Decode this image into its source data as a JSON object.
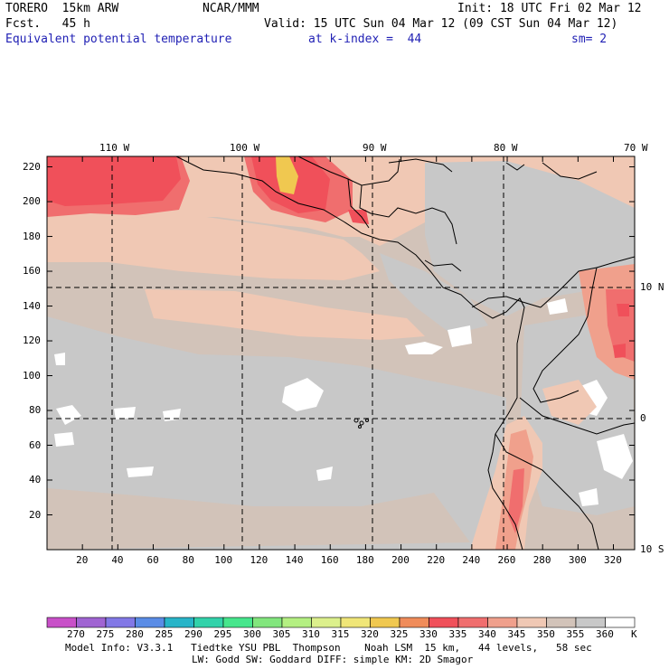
{
  "header": {
    "model": "TORERO  15km ARW",
    "org": "NCAR/MMM",
    "init": "Init: 18 UTC Fri 02 Mar 12",
    "fcst": "Fcst.   45 h",
    "valid": "Valid: 15 UTC Sun 04 Mar 12 (09 CST Sun 04 Mar 12)",
    "field": "Equivalent potential temperature",
    "level": "at k-index =  44",
    "smooth": "sm= 2"
  },
  "map": {
    "top_lon_labels": [
      "110 W",
      "100 W",
      "90 W",
      "80 W",
      "70 W"
    ],
    "right_lat_labels": [
      "10 N",
      "0",
      "10 S"
    ],
    "y_ticks": [
      "20",
      "40",
      "60",
      "80",
      "100",
      "120",
      "140",
      "160",
      "180",
      "200",
      "220"
    ],
    "x_ticks": [
      "20",
      "40",
      "60",
      "80",
      "100",
      "120",
      "140",
      "160",
      "180",
      "200",
      "220",
      "240",
      "260",
      "280",
      "300",
      "320"
    ]
  },
  "colorbar": {
    "labels": [
      "270",
      "275",
      "280",
      "285",
      "290",
      "295",
      "300",
      "305",
      "310",
      "315",
      "320",
      "325",
      "330",
      "335",
      "340",
      "345",
      "350",
      "355",
      "360"
    ],
    "unit": "K",
    "colors": [
      "#c850c8",
      "#a064d2",
      "#8278e6",
      "#5a8ce6",
      "#28b4c8",
      "#32d2aa",
      "#46e68c",
      "#82e67d",
      "#b4f082",
      "#dcf08c",
      "#f0e678",
      "#f0c850",
      "#f08c5a",
      "#f0505a",
      "#f06e6e",
      "#f0a08c",
      "#f0c8b4",
      "#d2c3b9",
      "#c8c8c8",
      "#ffffff"
    ]
  },
  "footer": {
    "line1": "Model Info: V3.3.1   Tiedtke YSU PBL  Thompson    Noah LSM  15 km,   44 levels,   58 sec",
    "line2": "LW: Godd SW: Goddard DIFF: simple KM: 2D Smagor"
  }
}
